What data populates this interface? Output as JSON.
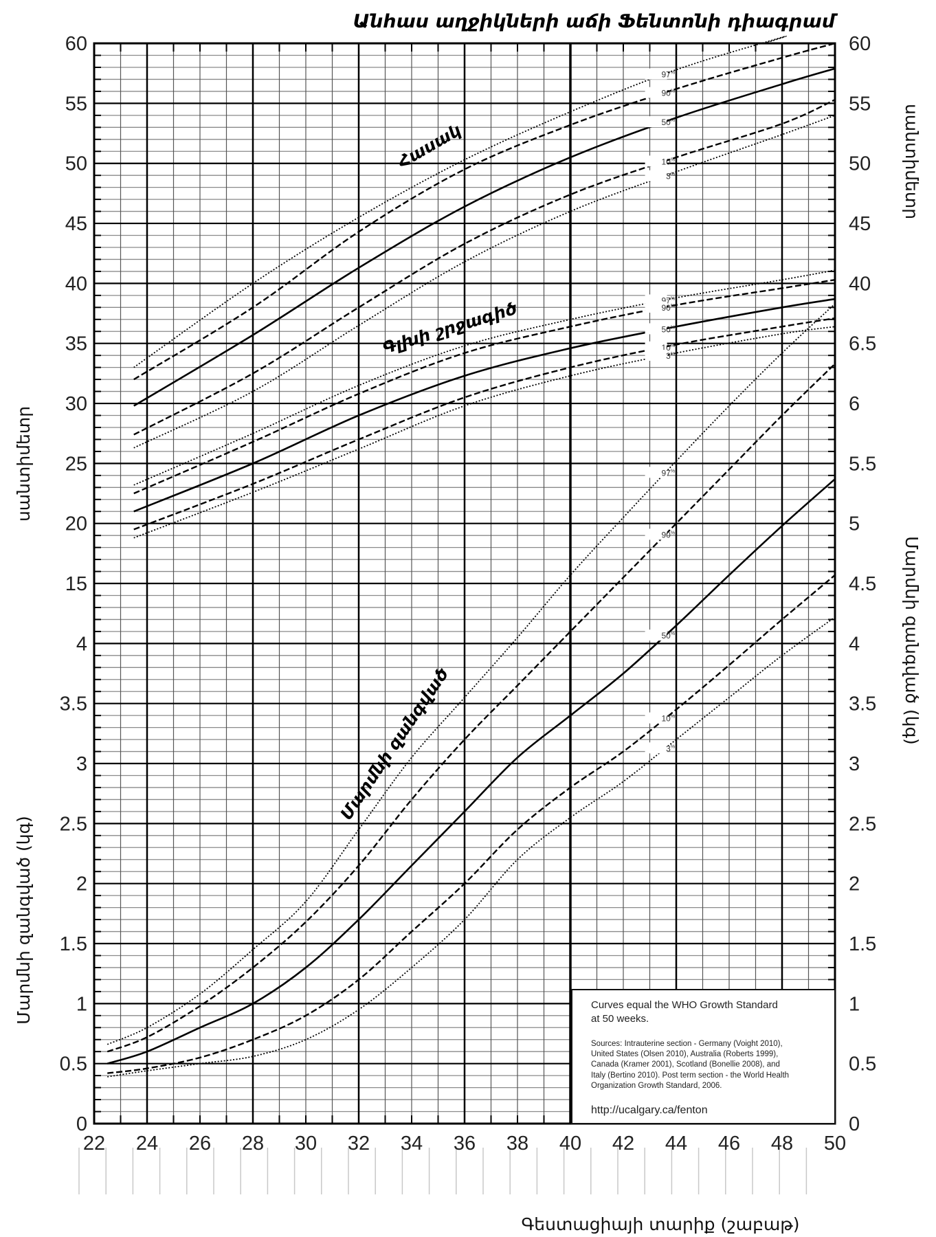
{
  "chart_data": {
    "type": "line",
    "title": "Անհաս աղջիկների աճի Ֆենտոնի դիագրամ",
    "xlabel": "Գեստացիայի տարիք (շաբաթ)",
    "xlim": [
      22,
      50
    ],
    "x_ticks": [
      "22",
      "24",
      "26",
      "28",
      "30",
      "32",
      "34",
      "36",
      "38",
      "40",
      "42",
      "44",
      "46",
      "48",
      "50"
    ],
    "left_axis": {
      "upper_label": "սանտիմետր",
      "lower_label": "Մարմնի զանգված (կգ)",
      "ticks": [
        "60",
        "55",
        "50",
        "45",
        "40",
        "35",
        "30",
        "25",
        "20",
        "15",
        "4",
        "3.5",
        "3",
        "2.5",
        "2",
        "1.5",
        "1",
        "0.5",
        "0"
      ]
    },
    "right_axis": {
      "upper_label": "սանտիմետր",
      "lower_label": "Մարմնի զանգված (կգ)",
      "ticks": [
        "60",
        "55",
        "50",
        "45",
        "40",
        "6.5",
        "6",
        "5.5",
        "5",
        "4.5",
        "4",
        "3.5",
        "3",
        "2.5",
        "2",
        "1.5",
        "1",
        "0.5",
        "0"
      ]
    },
    "grid": true,
    "percentile_suffix": "%",
    "groups": [
      {
        "name": "Հասակ",
        "unit": "cm",
        "x": [
          23.5,
          28,
          32,
          36,
          40,
          44,
          48,
          50
        ],
        "series": [
          {
            "name": "97",
            "style": "dotted",
            "values": [
              33.0,
              40.0,
              45.5,
              50.3,
              54.3,
              57.8,
              60.5,
              null
            ]
          },
          {
            "name": "90",
            "style": "dashed",
            "values": [
              32.0,
              38.0,
              44.3,
              49.5,
              53.2,
              56.2,
              58.8,
              60.0
            ]
          },
          {
            "name": "50",
            "style": "solid",
            "values": [
              29.8,
              35.7,
              41.3,
              46.4,
              50.5,
              53.8,
              56.6,
              57.9
            ]
          },
          {
            "name": "10",
            "style": "dashed",
            "values": [
              27.4,
              32.5,
              38.0,
              43.3,
              47.4,
              50.5,
              53.3,
              55.3
            ]
          },
          {
            "name": "3",
            "style": "dotted",
            "values": [
              26.3,
              31.0,
              36.5,
              41.8,
              46.0,
              49.3,
              52.4,
              54.0
            ]
          }
        ]
      },
      {
        "name": "Գլխի շրջագիծ",
        "unit": "cm",
        "x": [
          23.5,
          28,
          32,
          36,
          40,
          44,
          48,
          50
        ],
        "series": [
          {
            "name": "97",
            "style": "dotted",
            "values": [
              23.2,
              27.5,
              31.5,
              34.8,
              37.0,
              38.8,
              40.3,
              41.1
            ]
          },
          {
            "name": "90",
            "style": "dashed",
            "values": [
              22.5,
              26.8,
              30.8,
              34.2,
              36.4,
              38.2,
              39.6,
              40.3
            ]
          },
          {
            "name": "50",
            "style": "solid",
            "values": [
              21.0,
              25.0,
              29.0,
              32.3,
              34.6,
              36.4,
              38.0,
              38.7
            ]
          },
          {
            "name": "10",
            "style": "dashed",
            "values": [
              19.5,
              23.3,
              27.0,
              30.5,
              33.0,
              34.9,
              36.4,
              37.1
            ]
          },
          {
            "name": "3",
            "style": "dotted",
            "values": [
              18.8,
              22.6,
              26.2,
              29.8,
              32.3,
              34.2,
              35.8,
              36.4
            ]
          }
        ]
      },
      {
        "name": "Մարմնի զանգված",
        "unit": "kg",
        "x": [
          22.5,
          24,
          26,
          28,
          30,
          32,
          34,
          36,
          38,
          40,
          42,
          44,
          46,
          48,
          50
        ],
        "series": [
          {
            "name": "97",
            "style": "dotted",
            "values": [
              0.66,
              0.8,
              1.08,
              1.45,
              1.85,
              2.45,
              3.05,
              3.55,
              4.05,
              4.57,
              5.05,
              5.52,
              5.98,
              6.42,
              6.83
            ]
          },
          {
            "name": "90",
            "style": "dashed",
            "values": [
              0.6,
              0.72,
              0.98,
              1.3,
              1.68,
              2.15,
              2.7,
              3.2,
              3.65,
              4.1,
              4.55,
              5.0,
              5.45,
              5.9,
              6.33
            ]
          },
          {
            "name": "50",
            "style": "solid",
            "values": [
              0.5,
              0.6,
              0.8,
              1.0,
              1.3,
              1.7,
              2.15,
              2.6,
              3.05,
              3.4,
              3.75,
              4.15,
              4.57,
              4.98,
              5.37
            ]
          },
          {
            "name": "10",
            "style": "dashed",
            "values": [
              0.42,
              0.46,
              0.55,
              0.7,
              0.9,
              1.2,
              1.6,
              2.0,
              2.45,
              2.8,
              3.1,
              3.45,
              3.82,
              4.2,
              4.57
            ]
          },
          {
            "name": "3",
            "style": "dotted",
            "values": [
              0.39,
              0.44,
              0.5,
              0.56,
              0.7,
              0.95,
              1.3,
              1.7,
              2.2,
              2.55,
              2.85,
              3.2,
              3.55,
              3.9,
              4.22
            ]
          }
        ]
      }
    ],
    "note": {
      "heading_lines": [
        "Curves equal the WHO Growth Standard",
        "at 50 weeks."
      ],
      "source_lines": [
        "Sources: Intrauterine section - Germany (Voight 2010),",
        "United States (Olsen 2010), Australia (Roberts 1999),",
        "Canada (Kramer 2001), Scotland (Bonellie 2008), and",
        "Italy (Bertino 2010). Post term section - the World Health",
        "Organization Growth Standard, 2006."
      ],
      "url": "http://ucalgary.ca/fenton"
    }
  }
}
